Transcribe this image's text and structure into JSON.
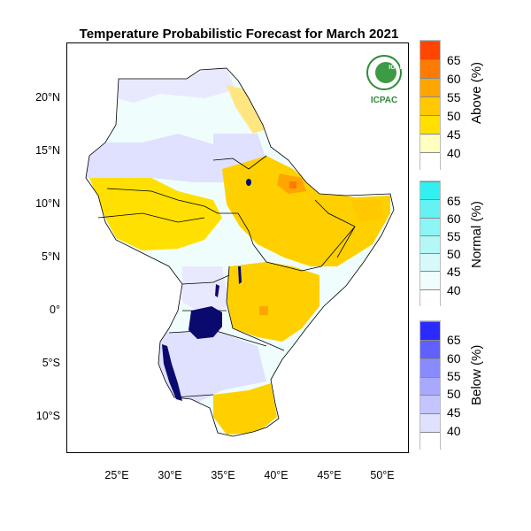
{
  "title": "Temperature Probabilistic Forecast for March 2021",
  "map": {
    "lat_labels": [
      "20°N",
      "15°N",
      "10°N",
      "5°N",
      "0°",
      "5°S",
      "10°S"
    ],
    "lon_labels": [
      "25°E",
      "30°E",
      "35°E",
      "40°E",
      "45°E",
      "50°E"
    ],
    "lon_range": [
      20.5,
      52.5
    ],
    "lat_range": [
      -13.6,
      24.5
    ]
  },
  "legend": {
    "above": {
      "title": "Above (%)",
      "values": [
        "65",
        "60",
        "55",
        "50",
        "45",
        "40"
      ],
      "colors": [
        "#ff4500",
        "#ff7a00",
        "#ffa500",
        "#ffc800",
        "#ffe000",
        "#ffffc0"
      ]
    },
    "normal": {
      "title": "Normal (%)",
      "values": [
        "65",
        "60",
        "55",
        "50",
        "45",
        "40"
      ],
      "colors": [
        "#33f0f0",
        "#66f2f2",
        "#8cf5f5",
        "#b3f7f7",
        "#d6fafa",
        "#f0fdfd"
      ]
    },
    "below": {
      "title": "Below (%)",
      "values": [
        "65",
        "60",
        "55",
        "50",
        "45",
        "40"
      ],
      "colors": [
        "#2a2aff",
        "#6060ff",
        "#8a8aff",
        "#a8a8ff",
        "#c4c4ff",
        "#e0e0ff"
      ]
    }
  },
  "logo": {
    "top_text": "IGAD",
    "bottom_text": "ICPAC"
  },
  "colors": {
    "lake": "#0a0a6e",
    "border": "#000000"
  }
}
